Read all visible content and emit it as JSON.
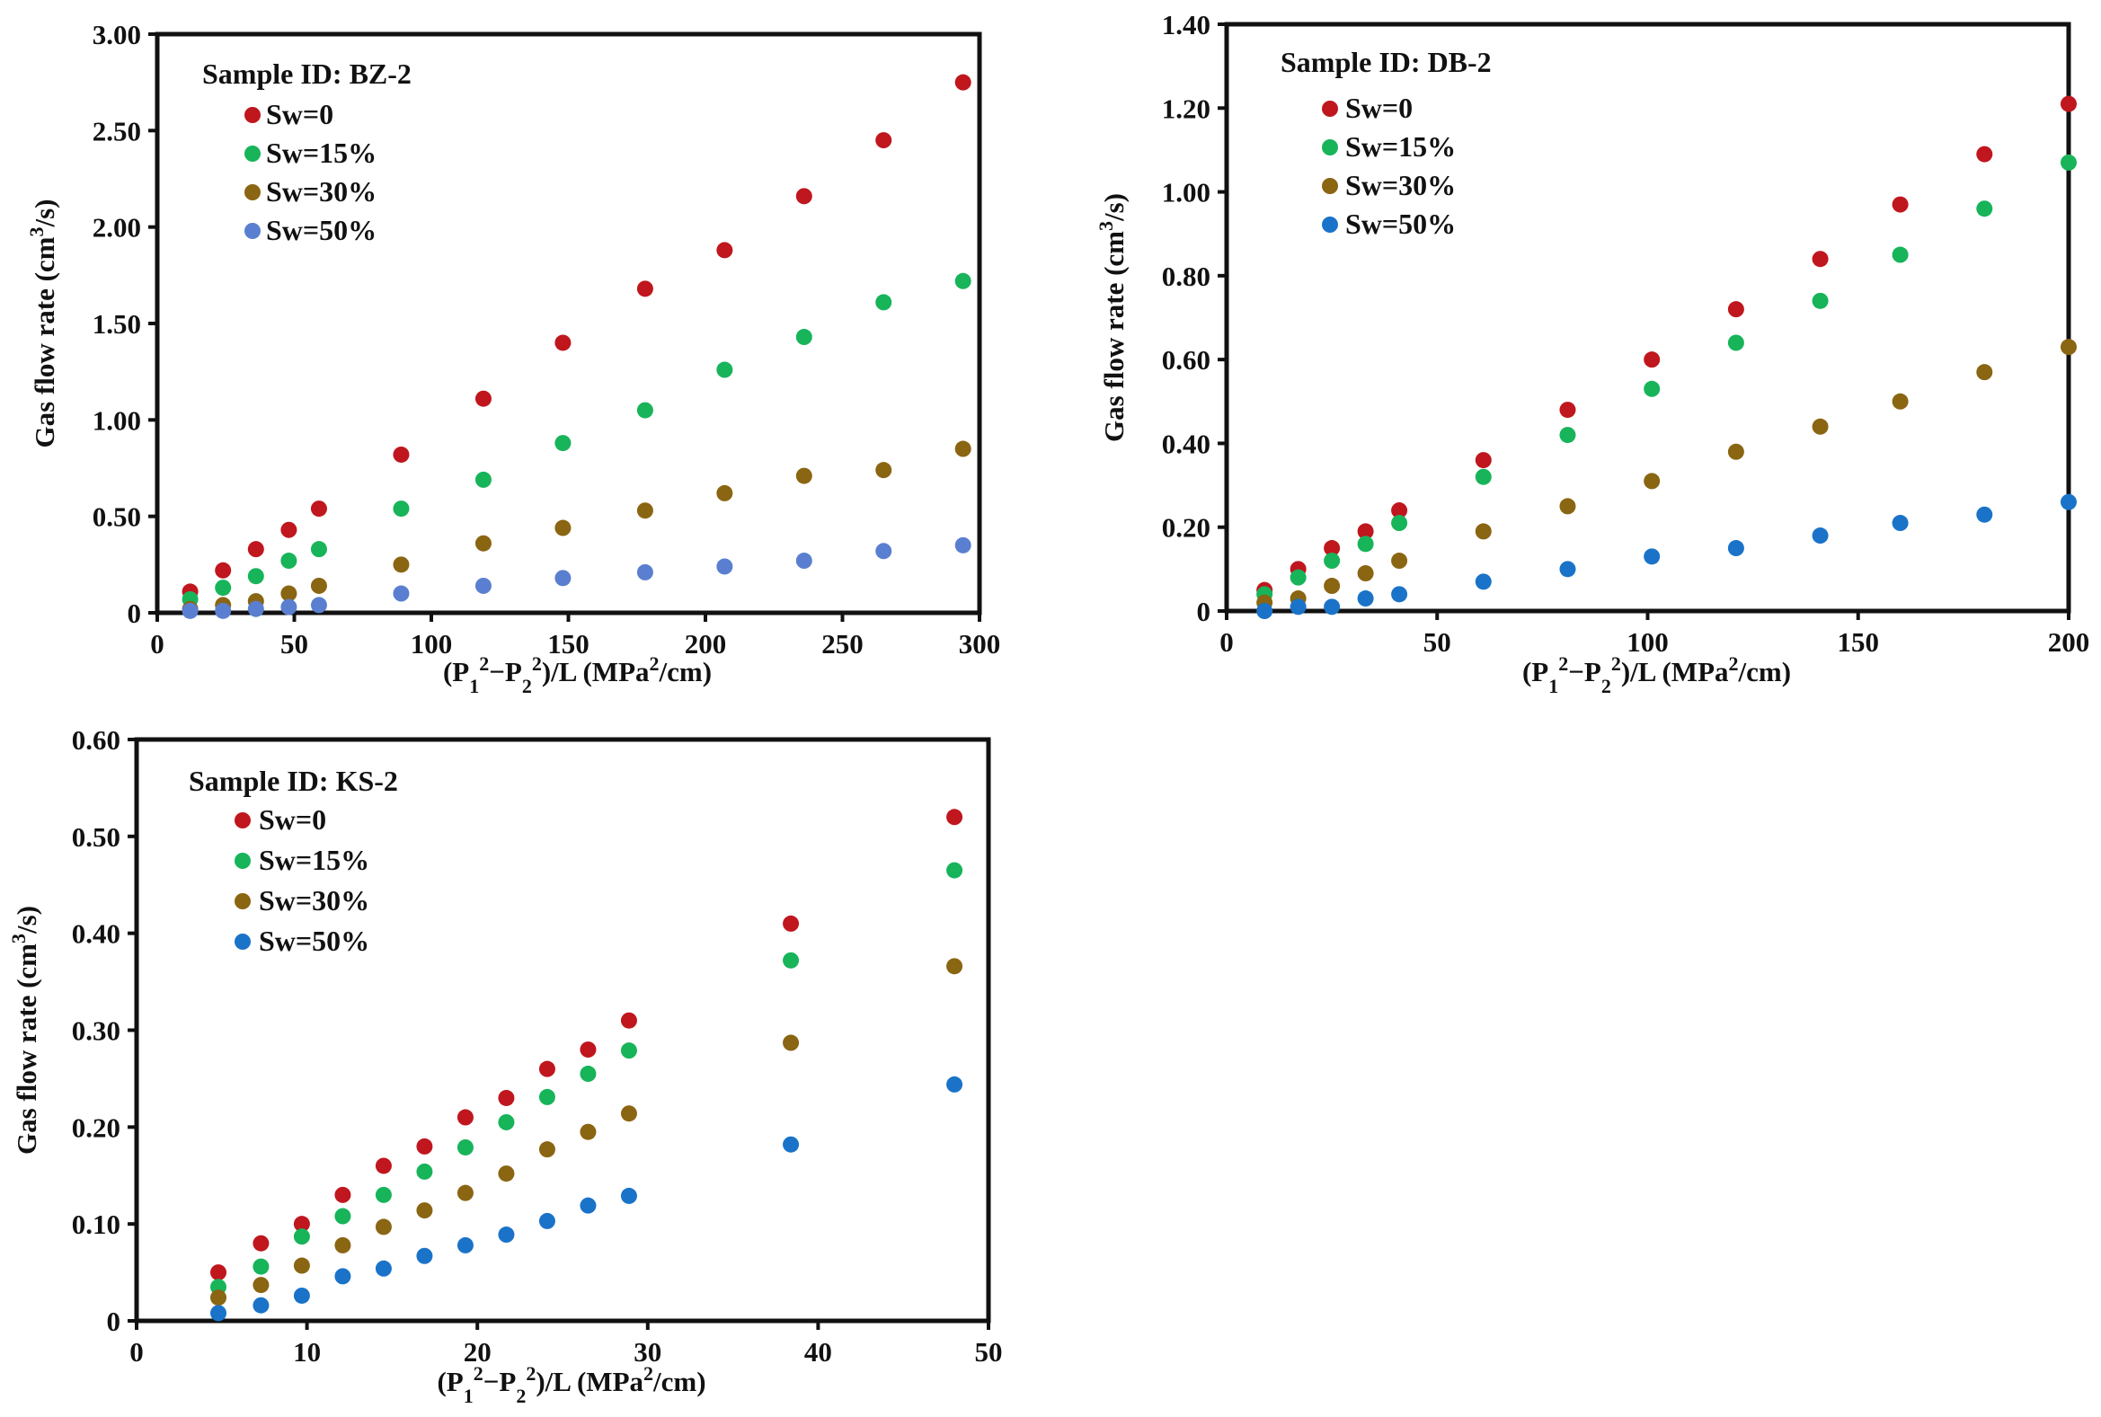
{
  "colors": {
    "Sw=0": "#c0161e",
    "Sw=15%": "#17b45a",
    "Sw=30%": "#8a6512",
    "Sw=50%_a": "#5a7fd0",
    "Sw=50%_b": "#1a73c8"
  },
  "chart_data": [
    {
      "type": "scatter",
      "title": "Sample  ID: BZ-2",
      "xlabel": "(P₁²−P₂²)/L  (MPa²/cm)",
      "ylabel": "Gas flow rate  (cm³/s)",
      "xlim": [
        0,
        300
      ],
      "ylim": [
        0,
        3.0
      ],
      "xticks": [
        "0",
        "50",
        "100",
        "150",
        "200",
        "250",
        "300"
      ],
      "yticks": [
        "0",
        "0.50",
        "1.00",
        "1.50",
        "2.00",
        "2.50",
        "3.00"
      ],
      "series": [
        {
          "name": "Sw=0",
          "color": "#c0161e",
          "x": [
            12,
            24,
            36,
            48,
            59,
            89,
            119,
            148,
            178,
            207,
            236,
            265,
            294
          ],
          "y": [
            0.11,
            0.22,
            0.33,
            0.43,
            0.54,
            0.82,
            1.11,
            1.4,
            1.68,
            1.88,
            2.16,
            2.45,
            2.75
          ]
        },
        {
          "name": "Sw=15%",
          "color": "#17b45a",
          "x": [
            12,
            24,
            36,
            48,
            59,
            89,
            119,
            148,
            178,
            207,
            236,
            265,
            294
          ],
          "y": [
            0.07,
            0.13,
            0.19,
            0.27,
            0.33,
            0.54,
            0.69,
            0.88,
            1.05,
            1.26,
            1.43,
            1.61,
            1.72
          ]
        },
        {
          "name": "Sw=30%",
          "color": "#8a6512",
          "x": [
            12,
            24,
            36,
            48,
            59,
            89,
            119,
            148,
            178,
            207,
            236,
            265,
            294
          ],
          "y": [
            0.02,
            0.04,
            0.06,
            0.1,
            0.14,
            0.25,
            0.36,
            0.44,
            0.53,
            0.62,
            0.71,
            0.74,
            0.85
          ]
        },
        {
          "name": "Sw=50%",
          "color": "#5a7fd0",
          "x": [
            12,
            24,
            36,
            48,
            59,
            89,
            119,
            148,
            178,
            207,
            236,
            265,
            294
          ],
          "y": [
            0.01,
            0.01,
            0.02,
            0.03,
            0.04,
            0.1,
            0.14,
            0.18,
            0.21,
            0.24,
            0.27,
            0.32,
            0.35
          ]
        }
      ]
    },
    {
      "type": "scatter",
      "title": "Sample  ID: DB-2",
      "xlabel": "(P₁²−P₂²)/L  (MPa²/cm)",
      "ylabel": "Gas flow rate  (cm³/s)",
      "xlim": [
        0,
        200
      ],
      "ylim": [
        0,
        1.4
      ],
      "xticks": [
        "0",
        "50",
        "100",
        "150",
        "200"
      ],
      "yticks": [
        "0",
        "0.20",
        "0.40",
        "0.60",
        "0.80",
        "1.00",
        "1.20",
        "1.40"
      ],
      "series": [
        {
          "name": "Sw=0",
          "color": "#c0161e",
          "x": [
            9,
            17,
            25,
            33,
            41,
            61,
            81,
            101,
            121,
            141,
            160,
            180,
            200
          ],
          "y": [
            0.05,
            0.1,
            0.15,
            0.19,
            0.24,
            0.36,
            0.48,
            0.6,
            0.72,
            0.84,
            0.97,
            1.09,
            1.21
          ]
        },
        {
          "name": "Sw=15%",
          "color": "#17b45a",
          "x": [
            9,
            17,
            25,
            33,
            41,
            61,
            81,
            101,
            121,
            141,
            160,
            180,
            200
          ],
          "y": [
            0.04,
            0.08,
            0.12,
            0.16,
            0.21,
            0.32,
            0.42,
            0.53,
            0.64,
            0.74,
            0.85,
            0.96,
            1.07
          ]
        },
        {
          "name": "Sw=30%",
          "color": "#8a6512",
          "x": [
            9,
            17,
            25,
            33,
            41,
            61,
            81,
            101,
            121,
            141,
            160,
            180,
            200
          ],
          "y": [
            0.02,
            0.03,
            0.06,
            0.09,
            0.12,
            0.19,
            0.25,
            0.31,
            0.38,
            0.44,
            0.5,
            0.57,
            0.63
          ]
        },
        {
          "name": "Sw=50%",
          "color": "#1a73c8",
          "x": [
            9,
            17,
            25,
            33,
            41,
            61,
            81,
            101,
            121,
            141,
            160,
            180,
            200
          ],
          "y": [
            0.0,
            0.01,
            0.01,
            0.03,
            0.04,
            0.07,
            0.1,
            0.13,
            0.15,
            0.18,
            0.21,
            0.23,
            0.26
          ]
        }
      ]
    },
    {
      "type": "scatter",
      "title": "Sample  ID: KS-2",
      "xlabel": "(P₁²−P₂²)/L  (MPa²/cm)",
      "ylabel": "Gas flow rate  (cm³/s)",
      "xlim": [
        0,
        50
      ],
      "ylim": [
        0,
        0.6
      ],
      "xticks": [
        "0",
        "10",
        "20",
        "30",
        "40",
        "50"
      ],
      "yticks": [
        "0",
        "0.10",
        "0.20",
        "0.30",
        "0.40",
        "0.50",
        "0.60"
      ],
      "series": [
        {
          "name": "Sw=0",
          "color": "#c0161e",
          "x": [
            4.8,
            7.3,
            9.7,
            12.1,
            14.5,
            16.9,
            19.3,
            21.7,
            24.1,
            26.5,
            28.9,
            38.4,
            48.0
          ],
          "y": [
            0.05,
            0.08,
            0.1,
            0.13,
            0.16,
            0.18,
            0.21,
            0.23,
            0.26,
            0.28,
            0.31,
            0.41,
            0.52
          ]
        },
        {
          "name": "Sw=15%",
          "color": "#17b45a",
          "x": [
            4.8,
            7.3,
            9.7,
            12.1,
            14.5,
            16.9,
            19.3,
            21.7,
            24.1,
            26.5,
            28.9,
            38.4,
            48.0
          ],
          "y": [
            0.035,
            0.056,
            0.087,
            0.108,
            0.13,
            0.154,
            0.179,
            0.205,
            0.231,
            0.255,
            0.279,
            0.372,
            0.465
          ]
        },
        {
          "name": "Sw=30%",
          "color": "#8a6512",
          "x": [
            4.8,
            7.3,
            9.7,
            12.1,
            14.5,
            16.9,
            19.3,
            21.7,
            24.1,
            26.5,
            28.9,
            38.4,
            48.0
          ],
          "y": [
            0.024,
            0.037,
            0.057,
            0.078,
            0.097,
            0.114,
            0.132,
            0.152,
            0.177,
            0.195,
            0.214,
            0.287,
            0.366
          ]
        },
        {
          "name": "Sw=50%",
          "color": "#1a73c8",
          "x": [
            4.8,
            7.3,
            9.7,
            12.1,
            14.5,
            16.9,
            19.3,
            21.7,
            24.1,
            26.5,
            28.9,
            38.4,
            48.0
          ],
          "y": [
            0.008,
            0.016,
            0.026,
            0.046,
            0.054,
            0.067,
            0.078,
            0.089,
            0.103,
            0.119,
            0.129,
            0.182,
            0.244
          ]
        }
      ]
    }
  ]
}
